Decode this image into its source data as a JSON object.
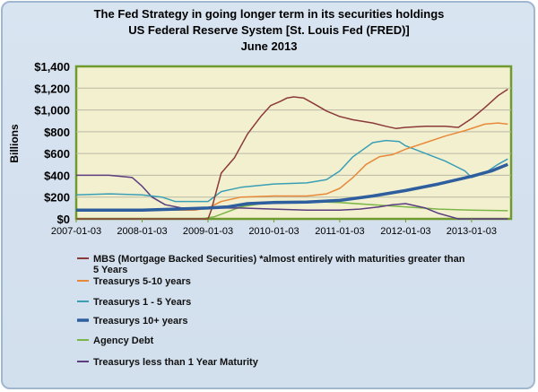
{
  "chart_data": {
    "type": "line",
    "title": [
      "The Fed Strategy in going longer term in its securities holdings",
      "US Federal Reserve System [St. Louis Fed (FRED)]",
      "June 2013"
    ],
    "ylabel": "Billions",
    "ylim": [
      0,
      1400
    ],
    "y_ticks": [
      "$0",
      "$200",
      "$400",
      "$600",
      "$800",
      "$1,000",
      "$1,200",
      "$1,400"
    ],
    "x_ticks": [
      "2007-01-03",
      "2008-01-03",
      "2009-01-03",
      "2010-01-03",
      "2011-01-03",
      "2012-01-03",
      "2013-01-03"
    ],
    "xlim": [
      2007.0,
      2013.6
    ],
    "grid": "horizontal",
    "legend_position": "bottom",
    "series": [
      {
        "name": "MBS (Mortgage Backed Securities) *almost entirely with maturities greater than 5 Years",
        "color": "#8b3a3a",
        "width": 1.5,
        "x": [
          2007.0,
          2008.95,
          2009.0,
          2009.05,
          2009.2,
          2009.4,
          2009.6,
          2009.8,
          2009.95,
          2010.1,
          2010.2,
          2010.3,
          2010.45,
          2010.6,
          2010.8,
          2011.0,
          2011.2,
          2011.5,
          2011.7,
          2011.85,
          2012.0,
          2012.3,
          2012.6,
          2012.8,
          2013.0,
          2013.2,
          2013.4,
          2013.55
        ],
        "values": [
          0,
          0,
          0,
          80,
          420,
          560,
          780,
          940,
          1040,
          1080,
          1110,
          1120,
          1110,
          1060,
          990,
          940,
          910,
          880,
          850,
          830,
          840,
          850,
          850,
          840,
          920,
          1020,
          1130,
          1190
        ]
      },
      {
        "name": "Treasurys 5-10 years",
        "color": "#e8893a",
        "width": 1.5,
        "x": [
          2007.0,
          2008.0,
          2008.8,
          2009.0,
          2009.2,
          2009.5,
          2010.0,
          2010.5,
          2010.8,
          2011.0,
          2011.2,
          2011.4,
          2011.6,
          2011.8,
          2012.0,
          2012.3,
          2012.6,
          2012.9,
          2013.2,
          2013.4,
          2013.55
        ],
        "values": [
          80,
          80,
          80,
          100,
          160,
          200,
          210,
          210,
          230,
          280,
          380,
          500,
          570,
          590,
          640,
          700,
          760,
          810,
          870,
          880,
          870
        ]
      },
      {
        "name": "Treasurys 1 - 5 Years",
        "color": "#3a9fb5",
        "width": 1.5,
        "x": [
          2007.0,
          2007.5,
          2008.0,
          2008.3,
          2008.5,
          2009.0,
          2009.2,
          2009.5,
          2010.0,
          2010.5,
          2010.8,
          2011.0,
          2011.2,
          2011.5,
          2011.7,
          2011.9,
          2012.0,
          2012.3,
          2012.6,
          2012.9,
          2013.0,
          2013.2,
          2013.4,
          2013.55
        ],
        "values": [
          220,
          230,
          220,
          200,
          160,
          160,
          250,
          290,
          320,
          330,
          360,
          440,
          570,
          700,
          720,
          710,
          670,
          600,
          530,
          440,
          380,
          420,
          500,
          550
        ]
      },
      {
        "name": "Treasurys 10+ years",
        "color": "#2e5e9e",
        "width": 3.5,
        "x": [
          2007.0,
          2008.0,
          2008.5,
          2009.0,
          2009.3,
          2009.6,
          2010.0,
          2010.5,
          2011.0,
          2011.5,
          2012.0,
          2012.5,
          2013.0,
          2013.3,
          2013.55
        ],
        "values": [
          80,
          80,
          90,
          100,
          110,
          140,
          150,
          155,
          170,
          210,
          260,
          320,
          390,
          440,
          500
        ]
      },
      {
        "name": "Agency Debt",
        "color": "#7ab648",
        "width": 1.5,
        "x": [
          2007.0,
          2008.9,
          2009.1,
          2009.5,
          2010.0,
          2010.5,
          2011.0,
          2011.5,
          2012.0,
          2012.5,
          2013.0,
          2013.55
        ],
        "values": [
          0,
          0,
          20,
          110,
          160,
          160,
          150,
          130,
          110,
          90,
          80,
          75
        ]
      },
      {
        "name": "Treasurys less than 1 Year Maturity",
        "color": "#5b3d80",
        "width": 1.5,
        "x": [
          2007.0,
          2007.5,
          2007.85,
          2008.0,
          2008.15,
          2008.35,
          2008.6,
          2009.0,
          2009.5,
          2010.0,
          2010.5,
          2011.0,
          2011.3,
          2011.6,
          2011.8,
          2012.0,
          2012.3,
          2012.5,
          2012.8,
          2013.0,
          2013.55
        ],
        "values": [
          400,
          400,
          380,
          300,
          200,
          130,
          100,
          100,
          100,
          90,
          80,
          80,
          90,
          110,
          130,
          140,
          100,
          50,
          0,
          0,
          0
        ]
      }
    ]
  },
  "legend_lines": [
    [
      "MBS (Mortgage Backed Securities) *almost entirely with maturities greater than",
      "5 Years"
    ],
    [
      "Treasurys 5-10 years"
    ],
    [
      "Treasurys 1 - 5 Years"
    ],
    [
      "Treasurys 10+ years"
    ],
    [
      "Agency Debt"
    ],
    [
      "Treasurys less than 1 Year Maturity"
    ]
  ]
}
